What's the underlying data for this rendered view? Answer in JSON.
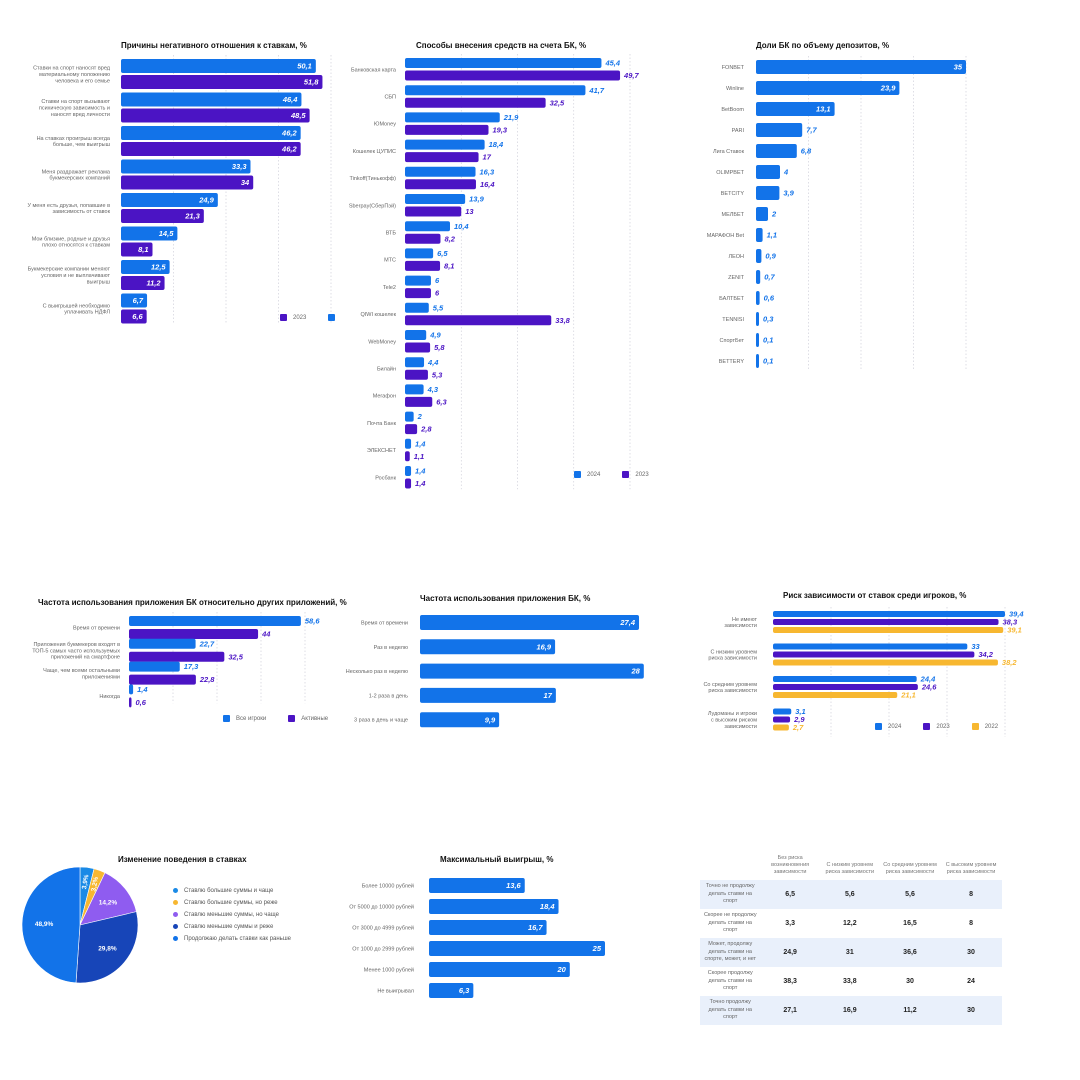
{
  "colors": {
    "blue": "#1273e9",
    "purple": "#4b14c4",
    "yellow": "#f7b730",
    "light": "#e9f0fb"
  },
  "chart_data": [
    {
      "id": "neg",
      "type": "bar",
      "title": "Причины негативного отношения к ставкам, %",
      "categories": [
        "Ставки на спорт наносят вред материальному положению человека и его семье",
        "Ставки на спорт вызывают психическую зависимость и наносят вред личности",
        "На ставках проигрыш всегда больше, чем выигрыш",
        "Меня раздражает реклама букмекерских компаний",
        "У меня есть друзья, попавшие в зависимость от ставок",
        "Мои близкие, родные и друзья плохо относятся к ставкам",
        "Букмекерские компании меняют условия и не выплачивают выигрыш",
        "С выигрышей необходимо уплачивать НДФЛ"
      ],
      "series": [
        {
          "name": "",
          "values": [
            50.1,
            46.4,
            46.2,
            33.3,
            24.9,
            14.5,
            12.5,
            6.7
          ]
        },
        {
          "name": "2023",
          "values": [
            51.8,
            48.5,
            46.2,
            34,
            21.3,
            8.1,
            11.2,
            6.6
          ]
        }
      ],
      "value_labels": [
        [
          "50,1",
          "46,4",
          "46,2",
          "33,3",
          "24,9",
          "14,5",
          "12,5",
          "6,7"
        ],
        [
          "51,8",
          "48,5",
          "46,2",
          "34",
          "21,3",
          "8,1",
          "11,2",
          "6,6"
        ]
      ],
      "legend": [
        "2023"
      ]
    },
    {
      "id": "dep",
      "type": "bar",
      "title": "Способы  внесения  средств  на  счета БК, %",
      "categories": [
        "Банковская карта",
        "СБП",
        "ЮMoney",
        "Кошелек ЦУПИС",
        "Tinkoff(Тинькофф)",
        "Sberpay(СберПэй)",
        "ВТБ",
        "МТС",
        "Tele2",
        "QIWI кошелек",
        "WebMoney",
        "Билайн",
        "Мегафон",
        "Почта Банк",
        "ЭЛЕКСНЕТ",
        "Росбанк"
      ],
      "series": [
        {
          "name": "2024",
          "values": [
            45.4,
            41.7,
            21.9,
            18.4,
            16.3,
            13.9,
            10.4,
            6.5,
            6,
            5.5,
            4.9,
            4.4,
            4.3,
            2,
            1.4,
            1.4
          ]
        },
        {
          "name": "2023",
          "values": [
            49.7,
            32.5,
            19.3,
            17,
            16.4,
            13,
            8.2,
            8.1,
            6,
            33.8,
            5.8,
            5.3,
            6.3,
            2.8,
            1.1,
            1.4
          ]
        }
      ],
      "value_labels": [
        [
          "45,4",
          "41,7",
          "21,9",
          "18,4",
          "16,3",
          "13,9",
          "10,4",
          "6,5",
          "6",
          "5,5",
          "4,9",
          "4,4",
          "4,3",
          "2",
          "1,4",
          "1,4"
        ],
        [
          "49,7",
          "32,5",
          "19,3",
          "17",
          "16,4",
          "13",
          "8,2",
          "8,1",
          "6",
          "33,8",
          "5,8",
          "5,3",
          "6,3",
          "2,8",
          "1,1",
          "1,4"
        ]
      ],
      "legend": [
        "2024",
        "2023"
      ]
    },
    {
      "id": "share",
      "type": "bar",
      "title": "Доли БК по объему депозитов, %",
      "categories": [
        "FONBET",
        "Winline",
        "BetBoom",
        "PARI",
        "Лига Ставок",
        "OLIMPBET",
        "BETCITY",
        "МЕЛБЕТ",
        "МАРАФОН Bet",
        "ЛЕОН",
        "ZENIT",
        "БАЛТБЕТ",
        "TENNISI",
        "СпортБет",
        "BETTERY"
      ],
      "series": [
        {
          "name": "",
          "values": [
            35,
            23.9,
            13.1,
            7.7,
            6.8,
            4,
            3.9,
            2,
            1.1,
            0.9,
            0.7,
            0.6,
            0.3,
            0.1,
            0.1
          ]
        }
      ],
      "value_labels": [
        [
          "35",
          "23,9",
          "13,1",
          "7,7",
          "6,8",
          "4",
          "3,9",
          "2",
          "1,1",
          "0,9",
          "0,7",
          "0,6",
          "0,3",
          "0,1",
          "0,1"
        ]
      ]
    },
    {
      "id": "freqrel",
      "type": "bar",
      "title": "Частота использования приложения БК относительно других приложений, %",
      "categories": [
        "Время от времени",
        "Приложения букмекеров входят в ТОП-5 самых часто используемых приложений на смартфоне",
        "Чаще, чем всеми остальными приложениями",
        "Никогда"
      ],
      "series": [
        {
          "name": "Все игроки",
          "values": [
            58.6,
            22.7,
            17.3,
            1.4
          ]
        },
        {
          "name": "Активные",
          "values": [
            44,
            32.5,
            22.8,
            0.6
          ]
        }
      ],
      "value_labels": [
        [
          "58,6",
          "22,7",
          "17,3",
          "1,4"
        ],
        [
          "44",
          "32,5",
          "22,8",
          "0,6"
        ]
      ],
      "legend": [
        "Все игроки",
        "Активные"
      ]
    },
    {
      "id": "freq",
      "type": "bar",
      "title": "Частота использования приложения БК, %",
      "categories": [
        "Время от времени",
        "Раз в неделю",
        "Несколько раз в неделю",
        "1-2 раза в день",
        "3 раза в день и чаще"
      ],
      "series": [
        {
          "name": "",
          "values": [
            27.4,
            16.9,
            28,
            17,
            9.9
          ]
        }
      ],
      "value_labels": [
        [
          "27,4",
          "16,9",
          "28",
          "17",
          "9,9"
        ]
      ]
    },
    {
      "id": "risk",
      "type": "bar",
      "title": "Риск зависимости от ставок среди игроков, %",
      "categories": [
        "Не имеют зависимости",
        "С низким уровнем риска  зависимости",
        "Со средним уровнем риска зависимости",
        "Лудоманы и игроки с высоким риском зависимости"
      ],
      "series": [
        {
          "name": "2024",
          "values": [
            39.4,
            33,
            24.4,
            3.1
          ]
        },
        {
          "name": "2023",
          "values": [
            38.3,
            34.2,
            24.6,
            2.9
          ]
        },
        {
          "name": "2022",
          "values": [
            39.1,
            38.2,
            21.1,
            2.7
          ]
        }
      ],
      "value_labels": [
        [
          "39,4",
          "33",
          "24,4",
          "3,1"
        ],
        [
          "38,3",
          "34,2",
          "24,6",
          "2,9"
        ],
        [
          "39,1",
          "38,2",
          "21,1",
          "2,7"
        ]
      ],
      "legend": [
        "2024",
        "2023",
        "2022"
      ]
    },
    {
      "id": "pie",
      "type": "pie",
      "title": "Изменение поведения в ставках",
      "categories": [
        "Ставлю большие суммы и чаще",
        "Ставлю большие суммы, но реже",
        "Ставлю меньшие суммы, но чаще",
        "Ставлю меньшие суммы и реже",
        "Продолжаю делать ставки как раньше"
      ],
      "values": [
        3.9,
        3.2,
        14.2,
        29.8,
        48.9
      ],
      "value_labels": [
        "3,9%",
        "3,2%",
        "14,2%",
        "29,8%",
        "48,9%"
      ],
      "slice_colors": [
        "#1a8ae6",
        "#f7b730",
        "#8f5cf0",
        "#1745b8",
        "#1273e9"
      ]
    },
    {
      "id": "win",
      "type": "bar",
      "title": "Максимальный выигрыш, %",
      "categories": [
        "Более 10000 рублей",
        "От 5000 до 10000 рублей",
        "От 3000 до 4999 рублей",
        "От 1000 до 2999 рублей",
        "Менее 1000 рублей",
        "Не выигрывал"
      ],
      "series": [
        {
          "name": "",
          "values": [
            13.6,
            18.4,
            16.7,
            25,
            20,
            6.3
          ]
        }
      ],
      "value_labels": [
        [
          "13,6",
          "18,4",
          "16,7",
          "25",
          "20",
          "6,3"
        ]
      ]
    },
    {
      "id": "tbl",
      "type": "table",
      "columns": [
        "Без риска возникновения зависимости",
        "С низким уровнем риска зависимости",
        "Со средним уровнем риска зависимости",
        "С высоким уровнем риска зависимости"
      ],
      "rows": [
        {
          "label": "Точно не продолжу делать ставки на спорт",
          "values": [
            "6,5",
            "5,6",
            "5,6",
            "8"
          ]
        },
        {
          "label": "Скорее не продолжу делать ставки на спорт",
          "values": [
            "3,3",
            "12,2",
            "16,5",
            "8"
          ]
        },
        {
          "label": "Может, продолжу делать ставки на спорте, может, и нет",
          "values": [
            "24,9",
            "31",
            "36,6",
            "30"
          ]
        },
        {
          "label": "Скорее продолжу делать ставки на спорт",
          "values": [
            "38,3",
            "33,8",
            "30",
            "24"
          ]
        },
        {
          "label": "Точно продолжу делать ставки на спорт",
          "values": [
            "27,1",
            "16,9",
            "11,2",
            "30"
          ]
        }
      ]
    }
  ]
}
